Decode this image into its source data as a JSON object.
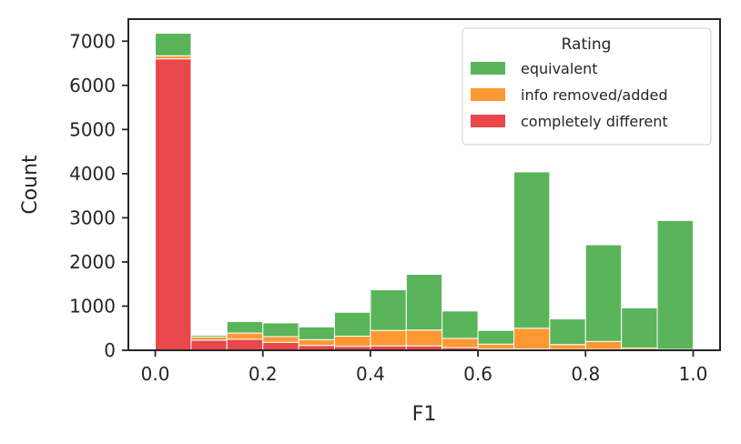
{
  "chart_data": {
    "type": "bar",
    "subtype": "stacked-histogram",
    "title": "",
    "xlabel": "F1",
    "ylabel": "Count",
    "xlim": [
      -0.05,
      1.05
    ],
    "ylim": [
      0,
      7500
    ],
    "x_ticks": [
      0.0,
      0.2,
      0.4,
      0.6,
      0.8,
      1.0
    ],
    "x_tick_labels": [
      "0.0",
      "0.2",
      "0.4",
      "0.6",
      "0.8",
      "1.0"
    ],
    "y_ticks": [
      0,
      1000,
      2000,
      3000,
      4000,
      5000,
      6000,
      7000
    ],
    "y_tick_labels": [
      "0",
      "1000",
      "2000",
      "3000",
      "4000",
      "5000",
      "6000",
      "7000"
    ],
    "bin_edges": [
      0.0,
      0.0667,
      0.1333,
      0.2,
      0.2667,
      0.3333,
      0.4,
      0.4667,
      0.5333,
      0.6,
      0.6667,
      0.7333,
      0.8,
      0.8667,
      0.9333,
      1.0
    ],
    "series": [
      {
        "name": "completely different",
        "color": "#e8474c",
        "values": [
          6600,
          230,
          250,
          180,
          110,
          90,
          100,
          100,
          60,
          30,
          30,
          20,
          20,
          10,
          0
        ]
      },
      {
        "name": "info removed/added",
        "color": "#ff9833",
        "values": [
          70,
          70,
          140,
          130,
          130,
          230,
          350,
          360,
          210,
          110,
          470,
          110,
          180,
          40,
          20
        ]
      },
      {
        "name": "equivalent",
        "color": "#5ab55a",
        "values": [
          510,
          40,
          260,
          310,
          290,
          540,
          920,
          1260,
          620,
          310,
          3540,
          580,
          2190,
          910,
          2920
        ]
      }
    ],
    "legend": {
      "title": "Rating",
      "position": "top-right",
      "entries": [
        "equivalent",
        "info removed/added",
        "completely different"
      ]
    },
    "grid": false
  }
}
